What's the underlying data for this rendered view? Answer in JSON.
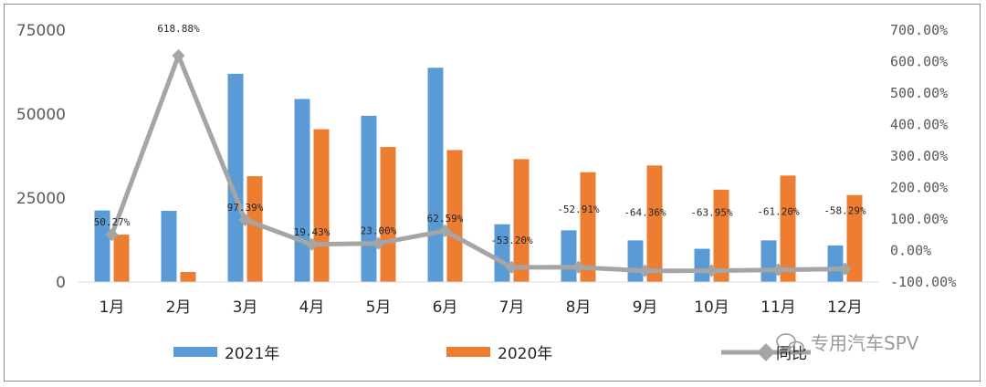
{
  "chart_data": {
    "type": "bar",
    "categories": [
      "1月",
      "2月",
      "3月",
      "4月",
      "5月",
      "6月",
      "7月",
      "8月",
      "9月",
      "10月",
      "11月",
      "12月"
    ],
    "series": [
      {
        "name": "2021年",
        "kind": "bar",
        "axis": "left",
        "color": "#5b9bd5",
        "values": [
          21300,
          21200,
          62000,
          54500,
          49500,
          63800,
          17200,
          15400,
          12400,
          9900,
          12400,
          10900
        ]
      },
      {
        "name": "2020年",
        "kind": "bar",
        "axis": "left",
        "color": "#ed7d31",
        "values": [
          14100,
          3000,
          31500,
          45500,
          40200,
          39300,
          36600,
          32700,
          34700,
          27500,
          31700,
          25900
        ]
      },
      {
        "name": "同比",
        "kind": "line",
        "axis": "right",
        "color": "#a5a5a5",
        "values": [
          50.27,
          618.88,
          97.39,
          19.43,
          23.0,
          62.59,
          -53.2,
          -52.91,
          -64.36,
          -63.95,
          -61.2,
          -58.29
        ],
        "labels": [
          "50.27%",
          "618.88%",
          "97.39%",
          "19.43%",
          "23.00%",
          "62.59%",
          "-53.20%",
          "-52.91%",
          "-64.36%",
          "-63.95%",
          "-61.20%",
          "-58.29%"
        ]
      }
    ],
    "left_axis": {
      "ylim": [
        0,
        75000
      ],
      "ticks": [
        "0",
        "25000",
        "50000",
        "75000"
      ]
    },
    "right_axis": {
      "ylim": [
        -100,
        700
      ],
      "ticks": [
        "-100.00%",
        "0.00%",
        "100.00%",
        "200.00%",
        "300.00%",
        "400.00%",
        "500.00%",
        "600.00%",
        "700.00%"
      ]
    },
    "grid": false,
    "legend_position": "bottom"
  },
  "watermark": "专用汽车SPV"
}
